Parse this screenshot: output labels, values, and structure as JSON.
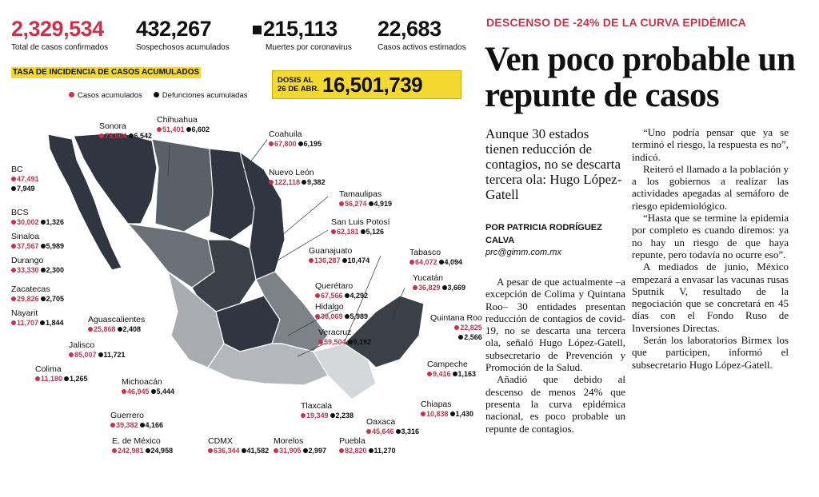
{
  "stats": {
    "confirmed": {
      "value": "2,329,534",
      "label": "Total de casos confirmados"
    },
    "suspected": {
      "value": "432,267",
      "label": "Sospechosos acumulados"
    },
    "deaths": {
      "value": "215,113",
      "label": "Muertes por coronavirus"
    },
    "active": {
      "value": "22,683",
      "label": "Casos activos estimados"
    }
  },
  "map": {
    "title": "TASA DE INCIDENCIA DE CASOS ACUMULADOS",
    "legend_cases": "Casos acumulados",
    "legend_deaths": "Defunciones acumuladas",
    "colors": {
      "cases": "#c8334a",
      "deaths": "#111111",
      "dark": "#2f3640",
      "mid": "#9ea2a6",
      "light": "#d5d7d9"
    },
    "doses_label_1": "DOSIS AL",
    "doses_label_2": "26 DE ABR.",
    "doses_value": "16,501,739",
    "states": [
      {
        "name": "Sonora",
        "cases": "73,004",
        "deaths": "6,542"
      },
      {
        "name": "Chihuahua",
        "cases": "51,401",
        "deaths": "6,602"
      },
      {
        "name": "Coahuila",
        "cases": "67,800",
        "deaths": "6,195"
      },
      {
        "name": "BC",
        "cases": "47,491",
        "deaths": "7,949"
      },
      {
        "name": "Nuevo León",
        "cases": "122,118",
        "deaths": "9,382"
      },
      {
        "name": "Tamaulipas",
        "cases": "56,274",
        "deaths": "4,919"
      },
      {
        "name": "BCS",
        "cases": "30,002",
        "deaths": "1,326"
      },
      {
        "name": "San Luis Potosí",
        "cases": "62,181",
        "deaths": "5,126"
      },
      {
        "name": "Sinaloa",
        "cases": "37,567",
        "deaths": "5,989"
      },
      {
        "name": "Durango",
        "cases": "33,330",
        "deaths": "2,300"
      },
      {
        "name": "Guanajuato",
        "cases": "130,287",
        "deaths": "10,474"
      },
      {
        "name": "Tabasco",
        "cases": "64,072",
        "deaths": "4,094"
      },
      {
        "name": "Zacatecas",
        "cases": "29,826",
        "deaths": "2,705"
      },
      {
        "name": "Querétaro",
        "cases": "67,566",
        "deaths": "4,292"
      },
      {
        "name": "Yucatán",
        "cases": "36,829",
        "deaths": "3,669"
      },
      {
        "name": "Nayarit",
        "cases": "11,707",
        "deaths": "1,844"
      },
      {
        "name": "Aguascalientes",
        "cases": "25,868",
        "deaths": "2,408"
      },
      {
        "name": "Hidalgo",
        "cases": "38,069",
        "deaths": "5,989"
      },
      {
        "name": "Quintana Roo",
        "cases": "22,825",
        "deaths": "2,566"
      },
      {
        "name": "Jalisco",
        "cases": "85,007",
        "deaths": "11,721"
      },
      {
        "name": "Veracruz",
        "cases": "59,504",
        "deaths": "9,192"
      },
      {
        "name": "Campeche",
        "cases": "9,416",
        "deaths": "1,163"
      },
      {
        "name": "Colima",
        "cases": "11,180",
        "deaths": "1,265"
      },
      {
        "name": "Michoacán",
        "cases": "46,945",
        "deaths": "5,444"
      },
      {
        "name": "Tlaxcala",
        "cases": "19,349",
        "deaths": "2,238"
      },
      {
        "name": "Chiapas",
        "cases": "10,838",
        "deaths": "1,430"
      },
      {
        "name": "Guerrero",
        "cases": "39,382",
        "deaths": "4,166"
      },
      {
        "name": "Oaxaca",
        "cases": "45,646",
        "deaths": "3,316"
      },
      {
        "name": "E. de México",
        "cases": "242,981",
        "deaths": "24,958"
      },
      {
        "name": "CDMX",
        "cases": "636,344",
        "deaths": "41,582"
      },
      {
        "name": "Morelos",
        "cases": "31,905",
        "deaths": "2,997"
      },
      {
        "name": "Puebla",
        "cases": "82,820",
        "deaths": "11,270"
      }
    ]
  },
  "article": {
    "kicker": "DESCENSO DE -24% DE LA CURVA EPIDÉMICA",
    "headline": "Ven poco probable un repunte de casos",
    "dek": "Aunque 30 estados tienen reducción de contagios, no se descarta tercera ola: Hugo López-Gatell",
    "byline": "POR PATRICIA RODRÍGUEZ CALVA",
    "email": "prc@gimm.com.mx",
    "col1": [
      "A pesar de que actualmente –a excepción de Colima y Quintana Roo– 30 entidades presentan reducción de contagios de covid-19, no se descarta una tercera ola, señaló Hugo López-Gatell, subsecretario de Prevención y Promoción de la Salud.",
      "Añadió que debido al descenso de menos 24% que presenta la curva epidémica nacional, es poco probable un repunte de contagios."
    ],
    "col2": [
      "“Uno podría pensar que ya se terminó el riesgo, la respuesta es no”, indicó.",
      "Reiteró el llamado a la población y a los gobiernos a realizar las actividades apegadas al semáforo de riesgo epidemiológico.",
      "“Hasta que se termine la epidemia por completo es cuando diremos: ya no hay un riesgo de que haya repunte, pero todavía no ocurre eso”.",
      "A mediados de junio, México empezará a envasar las vacunas rusas Sputnik V, resultado de la negociación que se concretará en 45 días con el Fondo Ruso de Inversiones Directas.",
      "Serán los laboratorios Birmex los que participen, informó el subsecretario Hugo López-Gatell."
    ]
  }
}
